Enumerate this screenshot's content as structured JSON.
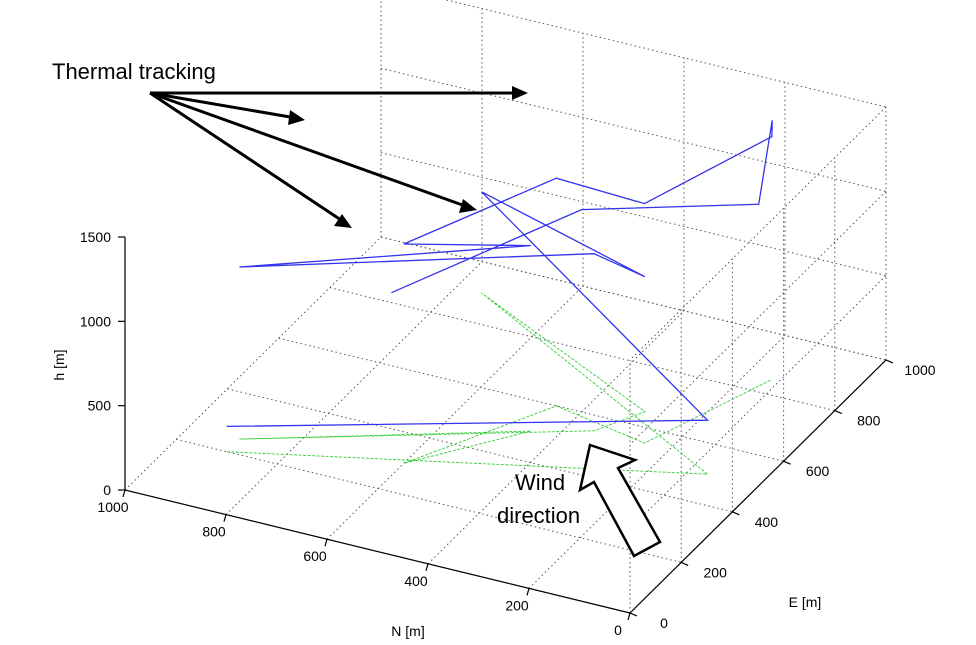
{
  "chart_data": {
    "type": "line",
    "title": "",
    "xlabel": "N [m]",
    "ylabel": "E [m]",
    "zlabel": "h [m]",
    "xlim": [
      0,
      1000
    ],
    "ylim": [
      0,
      1000
    ],
    "zlim": [
      0,
      1500
    ],
    "x_ticks": [
      "0",
      "200",
      "400",
      "600",
      "800",
      "1000"
    ],
    "y_ticks": [
      "0",
      "200",
      "400",
      "600",
      "800",
      "1000"
    ],
    "z_ticks": [
      "0",
      "500",
      "1000",
      "1500"
    ],
    "grid": true,
    "colors": {
      "flight": "#3333ee",
      "projection": "#33cc33",
      "axes": "#000000",
      "grid": "#555555"
    },
    "series": [
      {
        "name": "",
        "color": "#3333ee",
        "points": [
          [
            900,
            200,
            150
          ],
          [
            100,
            500,
            320
          ],
          [
            750,
            900,
            600
          ],
          [
            300,
            650,
            800
          ],
          [
            350,
            550,
            1050
          ],
          [
            900,
            250,
            1020
          ],
          [
            450,
            500,
            1100
          ],
          [
            600,
            300,
            1300
          ],
          [
            450,
            600,
            1350
          ],
          [
            250,
            550,
            1420
          ],
          [
            150,
            850,
            1440
          ],
          [
            200,
            950,
            1350
          ],
          [
            100,
            700,
            1300
          ],
          [
            400,
            600,
            1200
          ],
          [
            650,
            350,
            900
          ]
        ]
      },
      {
        "name": "",
        "color": "#33cc33",
        "points": [
          [
            900,
            200,
            0
          ],
          [
            100,
            500,
            0
          ],
          [
            750,
            900,
            0
          ],
          [
            300,
            650,
            0
          ],
          [
            350,
            550,
            0
          ],
          [
            900,
            250,
            0
          ],
          [
            450,
            500,
            0
          ],
          [
            600,
            300,
            0
          ],
          [
            450,
            600,
            0
          ],
          [
            250,
            550,
            0
          ],
          [
            150,
            850,
            0
          ]
        ]
      }
    ],
    "annotations": [
      {
        "text": "Thermal tracking"
      },
      {
        "text": "Wind"
      },
      {
        "text": "direction"
      }
    ]
  }
}
